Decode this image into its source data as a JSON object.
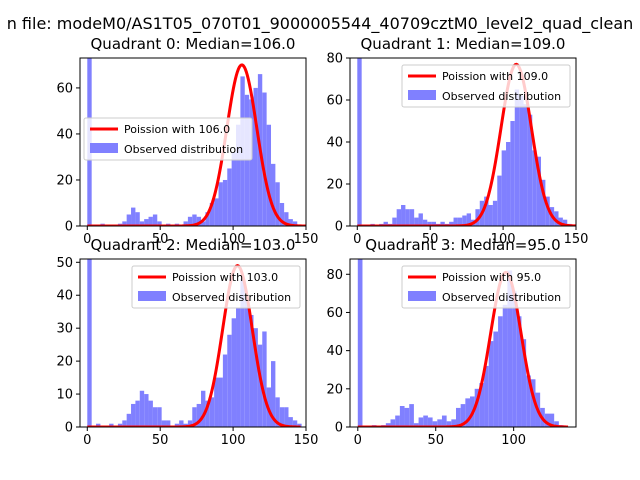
{
  "suptitle": "n file: modeM0/AS1T05_070T01_9000005544_40709cztM0_level2_quad_clean",
  "chart_data": [
    {
      "type": "histogram",
      "title": "Quadrant 0: Median=106.0",
      "xlim": [
        -5,
        150
      ],
      "ylim": [
        0,
        73
      ],
      "xticks": [
        0,
        50,
        100,
        150
      ],
      "yticks": [
        0,
        20,
        40,
        60
      ],
      "legend": {
        "placement": "center-left",
        "fit_label": "Poission with 106.0",
        "hist_label": "Observed distribution"
      },
      "fit_mean": 106.0,
      "fit_peak": 70,
      "bin_width": 3,
      "bins": [
        [
          0,
          73
        ],
        [
          3,
          0
        ],
        [
          6,
          0
        ],
        [
          9,
          1
        ],
        [
          12,
          0
        ],
        [
          15,
          0
        ],
        [
          18,
          0
        ],
        [
          21,
          1
        ],
        [
          24,
          2
        ],
        [
          27,
          5
        ],
        [
          30,
          8
        ],
        [
          33,
          6
        ],
        [
          36,
          2
        ],
        [
          39,
          3
        ],
        [
          42,
          4
        ],
        [
          45,
          5
        ],
        [
          48,
          2
        ],
        [
          51,
          0
        ],
        [
          54,
          1
        ],
        [
          57,
          0
        ],
        [
          60,
          1
        ],
        [
          63,
          0
        ],
        [
          66,
          2
        ],
        [
          69,
          4
        ],
        [
          72,
          5
        ],
        [
          75,
          4
        ],
        [
          78,
          2
        ],
        [
          81,
          6
        ],
        [
          84,
          10
        ],
        [
          87,
          12
        ],
        [
          90,
          19
        ],
        [
          93,
          20
        ],
        [
          96,
          25
        ],
        [
          99,
          32
        ],
        [
          102,
          44
        ],
        [
          105,
          65
        ],
        [
          108,
          57
        ],
        [
          111,
          55
        ],
        [
          114,
          60
        ],
        [
          117,
          66
        ],
        [
          120,
          58
        ],
        [
          123,
          44
        ],
        [
          126,
          27
        ],
        [
          129,
          19
        ],
        [
          132,
          10
        ],
        [
          135,
          6
        ],
        [
          138,
          3
        ],
        [
          141,
          2
        ]
      ]
    },
    {
      "type": "histogram",
      "title": "Quadrant 1: Median=109.0",
      "xlim": [
        -5,
        150
      ],
      "ylim": [
        0,
        80
      ],
      "xticks": [
        0,
        50,
        100,
        150
      ],
      "yticks": [
        0,
        20,
        40,
        60,
        80
      ],
      "legend": {
        "placement": "top-right",
        "fit_label": "Poission with 109.0",
        "hist_label": "Observed distribution"
      },
      "fit_mean": 109.0,
      "fit_peak": 77,
      "bin_width": 3,
      "bins": [
        [
          0,
          80
        ],
        [
          3,
          0
        ],
        [
          6,
          0
        ],
        [
          9,
          1
        ],
        [
          12,
          0
        ],
        [
          15,
          1
        ],
        [
          18,
          2
        ],
        [
          21,
          1
        ],
        [
          24,
          4
        ],
        [
          27,
          8
        ],
        [
          30,
          10
        ],
        [
          33,
          8
        ],
        [
          36,
          8
        ],
        [
          39,
          4
        ],
        [
          42,
          6
        ],
        [
          45,
          3
        ],
        [
          48,
          2
        ],
        [
          51,
          2
        ],
        [
          54,
          1
        ],
        [
          57,
          2
        ],
        [
          60,
          1
        ],
        [
          63,
          2
        ],
        [
          66,
          4
        ],
        [
          69,
          4
        ],
        [
          72,
          5
        ],
        [
          75,
          6
        ],
        [
          78,
          3
        ],
        [
          81,
          8
        ],
        [
          84,
          12
        ],
        [
          87,
          14
        ],
        [
          90,
          10
        ],
        [
          93,
          12
        ],
        [
          96,
          24
        ],
        [
          99,
          36
        ],
        [
          102,
          40
        ],
        [
          105,
          50
        ],
        [
          108,
          65
        ],
        [
          111,
          62
        ],
        [
          114,
          58
        ],
        [
          117,
          53
        ],
        [
          120,
          36
        ],
        [
          123,
          33
        ],
        [
          126,
          22
        ],
        [
          129,
          14
        ],
        [
          132,
          9
        ],
        [
          135,
          7
        ],
        [
          138,
          4
        ],
        [
          141,
          3
        ],
        [
          144,
          1
        ]
      ]
    },
    {
      "type": "histogram",
      "title": "Quadrant 2: Median=103.0",
      "xlim": [
        -5,
        150
      ],
      "ylim": [
        0,
        51
      ],
      "xticks": [
        0,
        50,
        100,
        150
      ],
      "yticks": [
        0,
        10,
        20,
        30,
        40,
        50
      ],
      "legend": {
        "placement": "top-right",
        "fit_label": "Poission with 103.0",
        "hist_label": "Observed distribution"
      },
      "fit_mean": 103.0,
      "fit_peak": 49,
      "bin_width": 3,
      "bins": [
        [
          0,
          51
        ],
        [
          3,
          0
        ],
        [
          6,
          1
        ],
        [
          9,
          0
        ],
        [
          12,
          0
        ],
        [
          15,
          1
        ],
        [
          18,
          0
        ],
        [
          21,
          1
        ],
        [
          24,
          2
        ],
        [
          27,
          4
        ],
        [
          30,
          7
        ],
        [
          33,
          8
        ],
        [
          36,
          11
        ],
        [
          39,
          10
        ],
        [
          42,
          8
        ],
        [
          45,
          6
        ],
        [
          48,
          6
        ],
        [
          51,
          2
        ],
        [
          54,
          2
        ],
        [
          57,
          0
        ],
        [
          60,
          1
        ],
        [
          63,
          2
        ],
        [
          66,
          1
        ],
        [
          69,
          2
        ],
        [
          72,
          6
        ],
        [
          75,
          7
        ],
        [
          78,
          11
        ],
        [
          81,
          8
        ],
        [
          84,
          9
        ],
        [
          87,
          15
        ],
        [
          90,
          15
        ],
        [
          93,
          22
        ],
        [
          96,
          28
        ],
        [
          99,
          33
        ],
        [
          102,
          36
        ],
        [
          105,
          45
        ],
        [
          108,
          39
        ],
        [
          111,
          34
        ],
        [
          114,
          30
        ],
        [
          117,
          25
        ],
        [
          120,
          29
        ],
        [
          123,
          12
        ],
        [
          126,
          20
        ],
        [
          129,
          9
        ],
        [
          132,
          6
        ],
        [
          135,
          6
        ],
        [
          138,
          3
        ],
        [
          141,
          2
        ],
        [
          144,
          1
        ]
      ]
    },
    {
      "type": "histogram",
      "title": "Quadrant 3: Median=95.0",
      "xlim": [
        -5,
        140
      ],
      "ylim": [
        0,
        88
      ],
      "xticks": [
        0,
        50,
        100
      ],
      "yticks": [
        0,
        20,
        40,
        60,
        80
      ],
      "legend": {
        "placement": "top-right",
        "fit_label": "Poission with 95.0",
        "hist_label": "Observed distribution"
      },
      "fit_mean": 95.0,
      "fit_peak": 81,
      "bin_width": 3,
      "bins": [
        [
          0,
          88
        ],
        [
          3,
          0
        ],
        [
          6,
          0
        ],
        [
          9,
          1
        ],
        [
          12,
          0
        ],
        [
          15,
          1
        ],
        [
          18,
          2
        ],
        [
          21,
          4
        ],
        [
          24,
          6
        ],
        [
          27,
          11
        ],
        [
          30,
          10
        ],
        [
          33,
          12
        ],
        [
          36,
          2
        ],
        [
          39,
          5
        ],
        [
          42,
          6
        ],
        [
          45,
          5
        ],
        [
          48,
          3
        ],
        [
          51,
          4
        ],
        [
          54,
          6
        ],
        [
          57,
          3
        ],
        [
          60,
          4
        ],
        [
          63,
          10
        ],
        [
          66,
          12
        ],
        [
          69,
          15
        ],
        [
          72,
          16
        ],
        [
          75,
          20
        ],
        [
          78,
          23
        ],
        [
          81,
          32
        ],
        [
          84,
          45
        ],
        [
          87,
          50
        ],
        [
          90,
          58
        ],
        [
          93,
          64
        ],
        [
          96,
          82
        ],
        [
          99,
          71
        ],
        [
          102,
          58
        ],
        [
          105,
          46
        ],
        [
          108,
          27
        ],
        [
          111,
          25
        ],
        [
          114,
          18
        ],
        [
          117,
          10
        ],
        [
          120,
          7
        ],
        [
          123,
          7
        ],
        [
          126,
          3
        ],
        [
          129,
          1
        ]
      ]
    }
  ]
}
